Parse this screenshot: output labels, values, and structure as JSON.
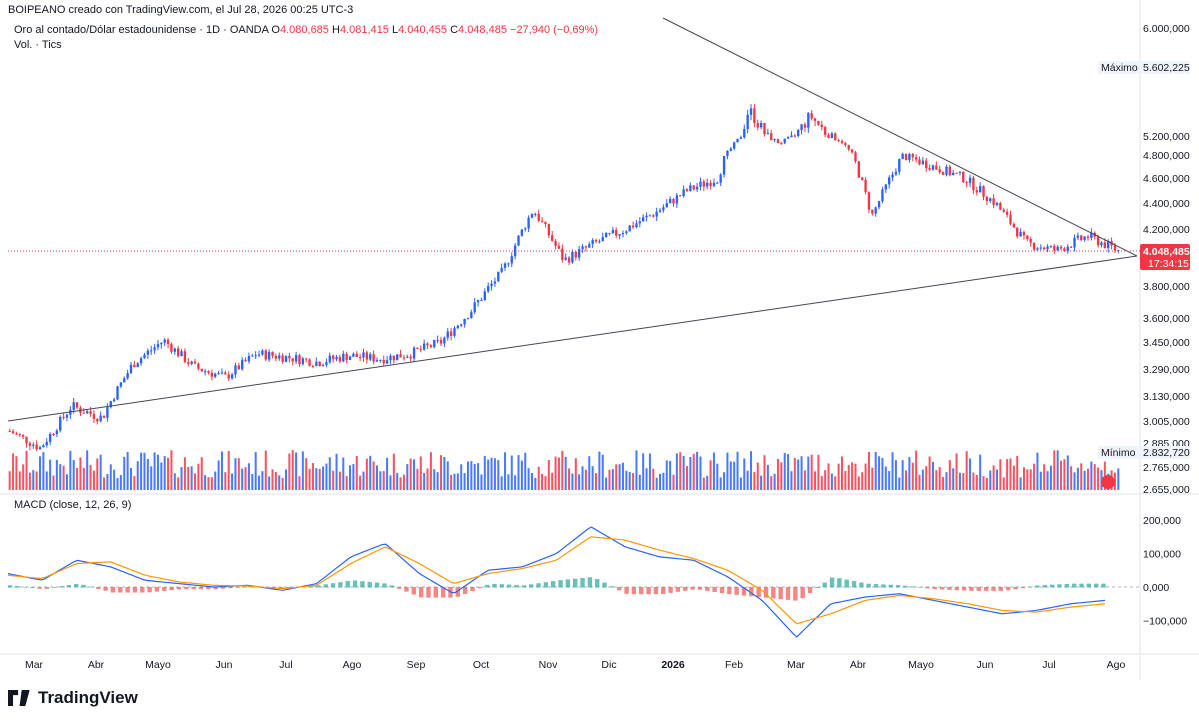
{
  "header": {
    "credit": "BOIPEANO creado con TradingView.com, el Jul 28, 2026 00:25 UTC-3",
    "symbol": "Oro al contado/Dólar estadounidense · 1D · OANDA",
    "o_label": "O",
    "o_value": "4.080,685",
    "h_label": "H",
    "h_value": "4.081,415",
    "l_label": "L",
    "l_value": "4.040,455",
    "c_label": "C",
    "c_value": "4.048,485",
    "change": "−27,940 (−0,69%)",
    "volume_legend": "Vol. · Tics"
  },
  "macd_legend": "MACD (close, 12, 26, 9)",
  "price_axis": {
    "ticks": [
      "6.000,000",
      "5.200,000",
      "4.800,000",
      "4.600,000",
      "4.400,000",
      "4.200,000",
      "3.800,000",
      "3.600,000",
      "3.450,000",
      "3.290,000",
      "3.130,000",
      "3.005,000",
      "2.885,000",
      "2.765,000",
      "2.655,000"
    ],
    "max_label": "Máximo",
    "max_value": "5.602,225",
    "min_label": "Mínimo",
    "min_value": "2.832,720",
    "last_price": "4.048,485",
    "countdown": "17:34:15"
  },
  "macd_axis": {
    "ticks": [
      "200,000",
      "100,000",
      "0,000",
      "−100,000"
    ]
  },
  "time_axis": {
    "labels": [
      "Mar",
      "Abr",
      "Mayo",
      "Jun",
      "Jul",
      "Ago",
      "Sep",
      "Oct",
      "Nov",
      "Dic",
      "2026",
      "Feb",
      "Mar",
      "Abr",
      "Mayo",
      "Jun",
      "Jul",
      "Ago"
    ]
  },
  "colors": {
    "up": "#2962ff",
    "down": "#f23645",
    "macd": "#2962ff",
    "signal": "#ff9800",
    "hist_pos": "#26a69a",
    "hist_neg": "#ef5350"
  },
  "brand": "TradingView",
  "chart_data": {
    "type": "candlestick",
    "symbol": "XAUUSD",
    "interval": "1D",
    "ohlc_last": {
      "open": 4080.685,
      "high": 4081.415,
      "low": 4040.455,
      "close": 4048.485
    },
    "price_path": [
      [
        "Mar",
        2950
      ],
      [
        "Mar",
        2860
      ],
      [
        "Abr",
        3080
      ],
      [
        "Abr",
        3020
      ],
      [
        "Abr",
        3320
      ],
      [
        "Abr",
        3460
      ],
      [
        "Mayo",
        3300
      ],
      [
        "Mayo",
        3240
      ],
      [
        "Jun",
        3380
      ],
      [
        "Jun",
        3360
      ],
      [
        "Jul",
        3330
      ],
      [
        "Jul",
        3370
      ],
      [
        "Ago",
        3350
      ],
      [
        "Ago",
        3380
      ],
      [
        "Sep",
        3450
      ],
      [
        "Sep",
        3650
      ],
      [
        "Oct",
        3900
      ],
      [
        "Oct",
        4350
      ],
      [
        "Nov",
        3980
      ],
      [
        "Nov",
        4100
      ],
      [
        "Dic",
        4200
      ],
      [
        "Dic",
        4330
      ],
      [
        "2026",
        4500
      ],
      [
        "2026",
        4600
      ],
      [
        "Feb",
        5400
      ],
      [
        "Feb",
        5050
      ],
      [
        "Mar",
        5350
      ],
      [
        "Mar",
        5100
      ],
      [
        "Abr",
        4300
      ],
      [
        "Abr",
        4800
      ],
      [
        "Mayo",
        4700
      ],
      [
        "Mayo",
        4600
      ],
      [
        "Jun",
        4400
      ],
      [
        "Jun",
        4100
      ],
      [
        "Jul",
        4050
      ],
      [
        "Jul",
        4150
      ],
      [
        "Ago",
        4048
      ]
    ],
    "macd_path": [
      40,
      20,
      80,
      60,
      20,
      10,
      0,
      5,
      -10,
      10,
      90,
      130,
      40,
      -20,
      50,
      60,
      100,
      180,
      120,
      90,
      80,
      30,
      -40,
      -150,
      -50,
      -30,
      -20,
      -40,
      -60,
      -80,
      -70,
      -50,
      -40
    ],
    "signal_path": [
      35,
      25,
      70,
      75,
      35,
      15,
      5,
      3,
      -5,
      5,
      70,
      120,
      70,
      10,
      40,
      55,
      80,
      150,
      140,
      110,
      85,
      50,
      -10,
      -110,
      -80,
      -40,
      -25,
      -35,
      -50,
      -70,
      -75,
      -60,
      -50
    ]
  }
}
